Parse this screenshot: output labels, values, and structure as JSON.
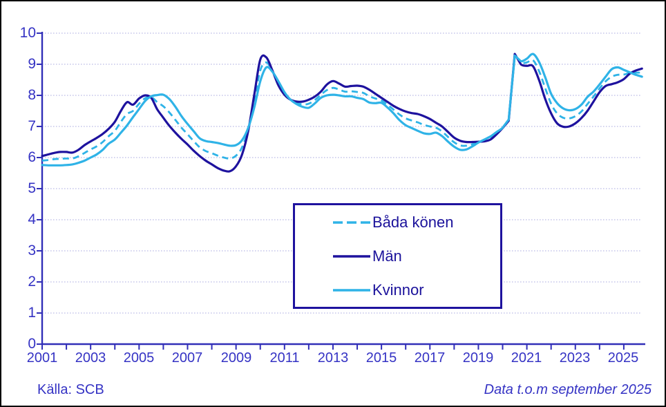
{
  "footer": {
    "source": "Källa: SCB",
    "coverage_note": "Data t.o.m september 2025"
  },
  "colors": {
    "axis": "#312fb8",
    "labels": "#3533c4",
    "grid": "#c6c6ea",
    "legend_border": "#1e129e",
    "legend_text": "#1b129b",
    "background": "#ffffff"
  },
  "chart_data": {
    "type": "line",
    "title": "",
    "xlabel": "",
    "ylabel": "",
    "x_start": 2001.0,
    "x_step": 0.25,
    "x_end": 2025.75,
    "ylim": [
      0,
      10
    ],
    "grid": "horizontal-dotted",
    "legend_position": "center-bottom-box",
    "x_axis": {
      "tick_every_years": 1,
      "label_every_years": 2,
      "tick_labels": [
        "2001",
        "2003",
        "2005",
        "2007",
        "2009",
        "2011",
        "2013",
        "2015",
        "2017",
        "2019",
        "2021",
        "2023",
        "2025"
      ]
    },
    "y_axis": {
      "min": 0,
      "max": 10,
      "tick_step": 1,
      "tick_labels_top_down": [
        "10",
        "9",
        "8",
        "7",
        "6",
        "5",
        "4",
        "3",
        "2",
        "1",
        "0"
      ]
    },
    "series": [
      {
        "name": "Båda könen",
        "color": "#2fb3e7",
        "dashed": true,
        "values": [
          5.9,
          5.92,
          5.95,
          5.96,
          5.97,
          5.97,
          6.04,
          6.15,
          6.26,
          6.36,
          6.5,
          6.69,
          6.86,
          7.15,
          7.4,
          7.5,
          7.73,
          7.91,
          7.95,
          7.78,
          7.65,
          7.45,
          7.21,
          6.96,
          6.75,
          6.53,
          6.33,
          6.21,
          6.14,
          6.06,
          6.0,
          5.97,
          6.06,
          6.33,
          6.9,
          7.8,
          8.8,
          9.06,
          8.78,
          8.38,
          8.06,
          7.86,
          7.76,
          7.71,
          7.73,
          7.85,
          8.02,
          8.17,
          8.24,
          8.19,
          8.12,
          8.13,
          8.11,
          8.08,
          7.97,
          7.9,
          7.84,
          7.7,
          7.54,
          7.38,
          7.26,
          7.19,
          7.13,
          7.05,
          7.0,
          6.96,
          6.84,
          6.66,
          6.49,
          6.39,
          6.38,
          6.43,
          6.49,
          6.55,
          6.63,
          6.78,
          6.95,
          7.2,
          9.3,
          9.05,
          9.06,
          9.13,
          8.79,
          8.25,
          7.73,
          7.42,
          7.28,
          7.26,
          7.33,
          7.48,
          7.72,
          7.96,
          8.22,
          8.45,
          8.6,
          8.66,
          8.67,
          8.72,
          8.73,
          8.73
        ]
      },
      {
        "name": "Män",
        "color": "#1e129e",
        "dashed": false,
        "values": [
          6.05,
          6.1,
          6.15,
          6.18,
          6.18,
          6.16,
          6.25,
          6.4,
          6.52,
          6.63,
          6.76,
          6.93,
          7.15,
          7.5,
          7.78,
          7.7,
          7.9,
          8.0,
          7.92,
          7.55,
          7.28,
          7.02,
          6.8,
          6.6,
          6.42,
          6.22,
          6.05,
          5.9,
          5.78,
          5.66,
          5.58,
          5.56,
          5.72,
          6.1,
          6.85,
          8.0,
          9.15,
          9.22,
          8.8,
          8.32,
          8.02,
          7.86,
          7.8,
          7.8,
          7.86,
          7.96,
          8.12,
          8.35,
          8.46,
          8.38,
          8.28,
          8.3,
          8.31,
          8.28,
          8.18,
          8.05,
          7.92,
          7.79,
          7.66,
          7.56,
          7.48,
          7.43,
          7.4,
          7.33,
          7.24,
          7.12,
          7.0,
          6.82,
          6.64,
          6.54,
          6.5,
          6.5,
          6.51,
          6.52,
          6.58,
          6.75,
          6.95,
          7.18,
          9.33,
          9.0,
          8.95,
          8.94,
          8.5,
          7.9,
          7.42,
          7.1,
          6.99,
          7.0,
          7.1,
          7.27,
          7.5,
          7.8,
          8.1,
          8.3,
          8.36,
          8.42,
          8.52,
          8.7,
          8.8,
          8.86
        ]
      },
      {
        "name": "Kvinnor",
        "color": "#2fb3e7",
        "dashed": false,
        "values": [
          5.76,
          5.75,
          5.75,
          5.75,
          5.76,
          5.78,
          5.83,
          5.9,
          6.0,
          6.1,
          6.25,
          6.45,
          6.58,
          6.8,
          7.03,
          7.3,
          7.56,
          7.82,
          7.97,
          8.01,
          8.02,
          7.88,
          7.63,
          7.33,
          7.08,
          6.85,
          6.62,
          6.53,
          6.5,
          6.47,
          6.42,
          6.38,
          6.4,
          6.56,
          6.95,
          7.6,
          8.45,
          8.9,
          8.76,
          8.45,
          8.1,
          7.86,
          7.72,
          7.63,
          7.6,
          7.74,
          7.92,
          8.0,
          8.02,
          8.0,
          7.97,
          7.97,
          7.92,
          7.88,
          7.77,
          7.75,
          7.76,
          7.61,
          7.42,
          7.2,
          7.04,
          6.95,
          6.86,
          6.78,
          6.76,
          6.8,
          6.69,
          6.51,
          6.35,
          6.25,
          6.26,
          6.36,
          6.48,
          6.58,
          6.68,
          6.82,
          6.96,
          7.22,
          9.28,
          9.1,
          9.18,
          9.33,
          9.08,
          8.6,
          8.05,
          7.75,
          7.58,
          7.52,
          7.56,
          7.7,
          7.95,
          8.12,
          8.35,
          8.6,
          8.84,
          8.9,
          8.82,
          8.74,
          8.66,
          8.6
        ]
      }
    ]
  }
}
